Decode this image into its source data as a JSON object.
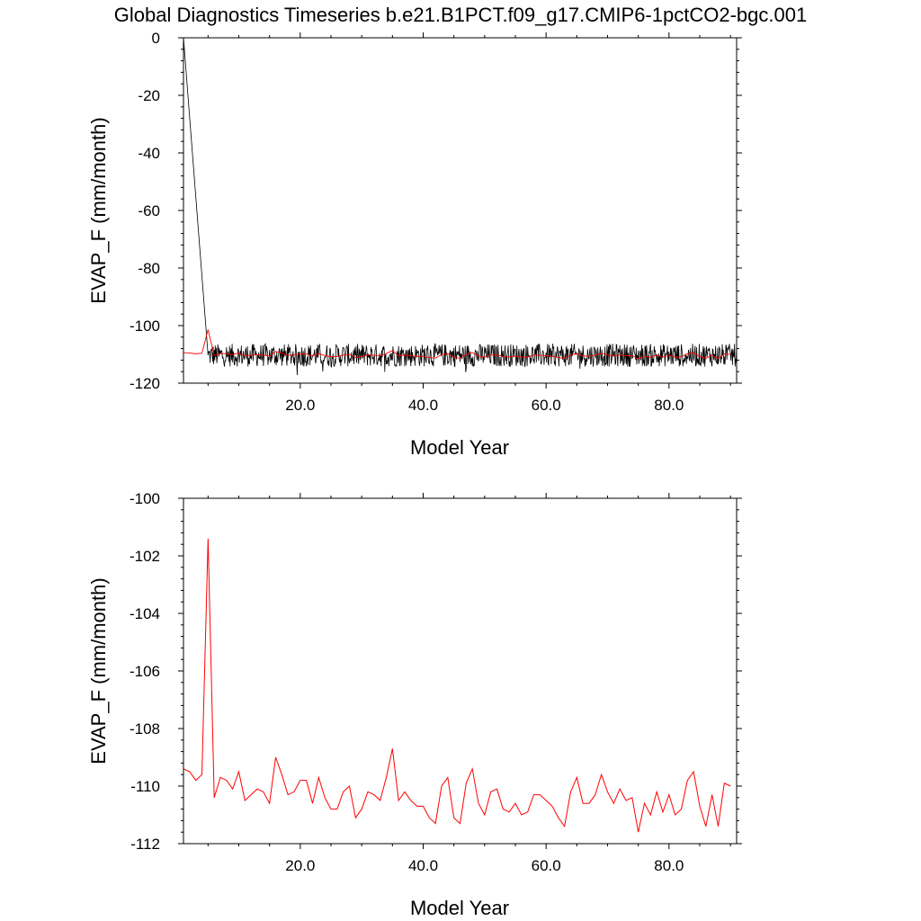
{
  "title": "Global Diagnostics Timeseries b.e21.B1PCT.f09_g17.CMIP6-1pctCO2-bgc.001",
  "chart_data": [
    {
      "type": "line",
      "xlabel": "Model Year",
      "ylabel": "EVAP_F (mm/month)",
      "xlim": [
        1,
        91
      ],
      "ylim": [
        -120,
        0
      ],
      "xticks": [
        "20.0",
        "40.0",
        "60.0",
        "80.0"
      ],
      "xtick_values": [
        20,
        40,
        60,
        80
      ],
      "yticks": [
        "0",
        "-20",
        "-40",
        "-60",
        "-80",
        "-100",
        "-120"
      ],
      "ytick_values": [
        0,
        -20,
        -40,
        -60,
        -80,
        -100,
        -120
      ],
      "series": [
        {
          "color": "#000000",
          "description": "monthly values",
          "x_start": 1,
          "x_step": 0.083333,
          "summary": {
            "first_value": 0,
            "reaches_steady_state_by_year": 5,
            "steady_mean": -110.3,
            "steady_range": [
              -118,
              -105
            ]
          }
        },
        {
          "color": "#ff0000",
          "description": "annual means (same as lower panel)"
        }
      ]
    },
    {
      "type": "line",
      "xlabel": "Model Year",
      "ylabel": "EVAP_F (mm/month)",
      "xlim": [
        1,
        91
      ],
      "ylim": [
        -112,
        -100
      ],
      "xticks": [
        "20.0",
        "40.0",
        "60.0",
        "80.0"
      ],
      "xtick_values": [
        20,
        40,
        60,
        80
      ],
      "yticks": [
        "-100",
        "-102",
        "-104",
        "-106",
        "-108",
        "-110",
        "-112"
      ],
      "ytick_values": [
        -100,
        -102,
        -104,
        -106,
        -108,
        -110,
        -112
      ],
      "series": [
        {
          "color": "#ff0000",
          "x_start": 1,
          "values": [
            -109.4,
            -109.5,
            -109.8,
            -109.6,
            -101.4,
            -110.4,
            -109.7,
            -109.8,
            -110.1,
            -109.5,
            -110.5,
            -110.3,
            -110.1,
            -110.2,
            -110.6,
            -109.0,
            -109.6,
            -110.3,
            -110.2,
            -109.8,
            -109.8,
            -110.6,
            -109.7,
            -110.4,
            -110.8,
            -110.8,
            -110.2,
            -110.0,
            -111.1,
            -110.8,
            -110.2,
            -110.3,
            -110.5,
            -109.7,
            -108.7,
            -110.5,
            -110.2,
            -110.5,
            -110.7,
            -110.7,
            -111.1,
            -111.3,
            -110.0,
            -109.7,
            -111.1,
            -111.3,
            -109.9,
            -109.4,
            -110.6,
            -111.0,
            -110.2,
            -110.1,
            -110.8,
            -110.9,
            -110.6,
            -111.0,
            -110.9,
            -110.3,
            -110.3,
            -110.5,
            -110.7,
            -111.1,
            -111.4,
            -110.2,
            -109.7,
            -110.6,
            -110.6,
            -110.3,
            -109.6,
            -110.2,
            -110.6,
            -110.1,
            -110.5,
            -110.4,
            -111.6,
            -110.6,
            -111.0,
            -110.2,
            -110.9,
            -110.3,
            -111.0,
            -110.8,
            -109.8,
            -109.5,
            -110.7,
            -111.4,
            -110.3,
            -111.4,
            -109.9,
            -110.0
          ]
        }
      ]
    }
  ]
}
